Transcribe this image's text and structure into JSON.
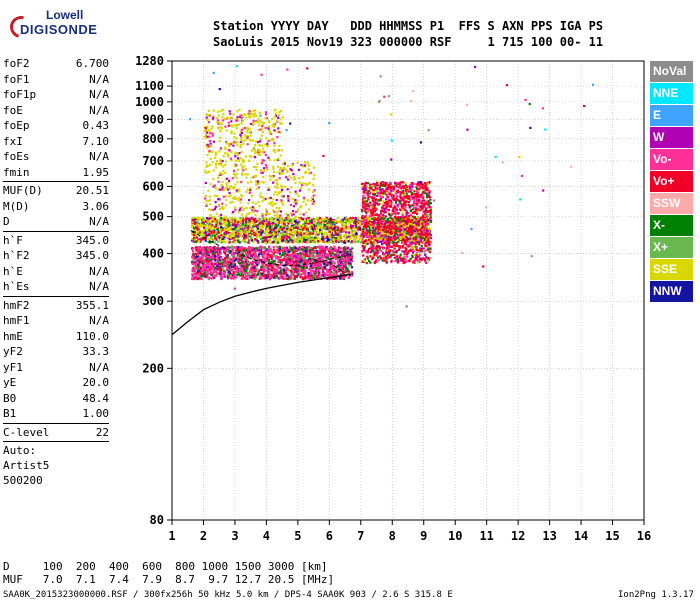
{
  "logo": {
    "line1": "Lowell",
    "line2": "DIGISONDE"
  },
  "header": {
    "row1": "Station YYYY DAY   DDD HHMMSS P1  FFS S AXN PPS IGA PS",
    "row2": "SaoLuis 2015 Nov19 323 000000 RSF     1 715 100 00- 11"
  },
  "params": {
    "group1": [
      {
        "name": "foF2",
        "value": "6.700"
      },
      {
        "name": "foF1",
        "value": "N/A"
      },
      {
        "name": "foF1p",
        "value": "N/A"
      },
      {
        "name": "foE",
        "value": "N/A"
      },
      {
        "name": "foEp",
        "value": "0.43"
      },
      {
        "name": "fxI",
        "value": "7.10"
      },
      {
        "name": "foEs",
        "value": "N/A"
      },
      {
        "name": "fmin",
        "value": "1.95"
      }
    ],
    "group2": [
      {
        "name": "MUF(D)",
        "value": "20.51"
      },
      {
        "name": "M(D)",
        "value": "3.06"
      },
      {
        "name": "D",
        "value": "N/A"
      }
    ],
    "group3": [
      {
        "name": "h`F",
        "value": "345.0"
      },
      {
        "name": "h`F2",
        "value": "345.0"
      },
      {
        "name": "h`E",
        "value": "N/A"
      },
      {
        "name": "h`Es",
        "value": "N/A"
      }
    ],
    "group4": [
      {
        "name": "hmF2",
        "value": "355.1"
      },
      {
        "name": "hmF1",
        "value": "N/A"
      },
      {
        "name": "hmE",
        "value": "110.0"
      },
      {
        "name": "yF2",
        "value": "33.3"
      },
      {
        "name": "yF1",
        "value": "N/A"
      },
      {
        "name": "yE",
        "value": "20.0"
      },
      {
        "name": "B0",
        "value": "48.4"
      },
      {
        "name": "B1",
        "value": "1.00"
      }
    ],
    "group5": [
      {
        "name": "C-level",
        "value": "22"
      }
    ],
    "extra": [
      "Auto:",
      "Artist5",
      "500200"
    ]
  },
  "legend": [
    {
      "label": "NoVal",
      "color": "#8c8c8c"
    },
    {
      "label": "NNE",
      "color": "#00e8ff"
    },
    {
      "label": "E",
      "color": "#3fa4ff"
    },
    {
      "label": "W",
      "color": "#b000b4"
    },
    {
      "label": "Vo-",
      "color": "#ff2f98"
    },
    {
      "label": "Vo+",
      "color": "#f00028"
    },
    {
      "label": "SSW",
      "color": "#ffaaaa"
    },
    {
      "label": "X-",
      "color": "#008000"
    },
    {
      "label": "X+",
      "color": "#6ab850"
    },
    {
      "label": "SSE",
      "color": "#d8d800"
    },
    {
      "label": "NNW",
      "color": "#1414a0"
    }
  ],
  "footer": {
    "d_row": "D     100  200  400  600  800 1000 1500 3000 [km]",
    "muf_row": "MUF   7.0  7.1  7.4  7.9  8.7  9.7 12.7 20.5 [MHz]",
    "file_info": "SAA0K_2015323000000.RSF / 300fx256h 50 kHz 5.0 km / DPS-4 SAA0K 903 / 2.6 S 315.8 E",
    "version": "Ion2Png 1.3.17"
  },
  "chart_data": {
    "type": "scatter",
    "title": "",
    "xlabel": "",
    "ylabel": "",
    "x_range": [
      1,
      16
    ],
    "y_range": [
      80,
      1280
    ],
    "x_ticks": [
      1,
      2,
      3,
      4,
      5,
      6,
      7,
      8,
      9,
      10,
      11,
      12,
      13,
      14,
      15,
      16
    ],
    "y_ticks": [
      80,
      200,
      300,
      400,
      500,
      600,
      700,
      800,
      900,
      1000,
      1100,
      1280
    ],
    "y_scale": "logarithmic",
    "grid": true,
    "series": [
      {
        "name": "echoes_low_F",
        "color": "#ff2f98",
        "freq_range": [
          1.6,
          6.7
        ],
        "height_range": [
          345,
          420
        ]
      },
      {
        "name": "echoes_F_mid",
        "color": "#d8d800",
        "freq_range": [
          1.6,
          9.2
        ],
        "height_range": [
          430,
          500
        ]
      },
      {
        "name": "echoes_high",
        "color": "#d8d800",
        "freq_range": [
          2.0,
          5.5
        ],
        "height_range": [
          500,
          960
        ]
      },
      {
        "name": "echoes_right_cluster",
        "color": "#f00028",
        "freq_range": [
          7.0,
          9.2
        ],
        "height_range": [
          380,
          620
        ]
      }
    ],
    "profile_curve": [
      [
        1,
        245
      ],
      [
        1.5,
        265
      ],
      [
        2,
        285
      ],
      [
        2.5,
        298
      ],
      [
        3,
        309
      ],
      [
        3.5,
        317
      ],
      [
        4,
        324
      ],
      [
        4.5,
        330
      ],
      [
        5,
        336
      ],
      [
        5.5,
        341
      ],
      [
        6,
        346
      ],
      [
        6.5,
        351
      ],
      [
        6.7,
        353
      ]
    ],
    "dashed_trace": [
      [
        1.6,
        460
      ],
      [
        2,
        440
      ],
      [
        2.5,
        420
      ],
      [
        3,
        402
      ],
      [
        3.5,
        388
      ],
      [
        4,
        378
      ],
      [
        4.5,
        372
      ],
      [
        5,
        373
      ],
      [
        5.5,
        378
      ],
      [
        6,
        386
      ],
      [
        6.4,
        392
      ],
      [
        6.7,
        398
      ]
    ],
    "dashed_trace2": [
      [
        5.5,
        385
      ],
      [
        6,
        378
      ],
      [
        6.3,
        365
      ],
      [
        6.5,
        355
      ]
    ]
  }
}
